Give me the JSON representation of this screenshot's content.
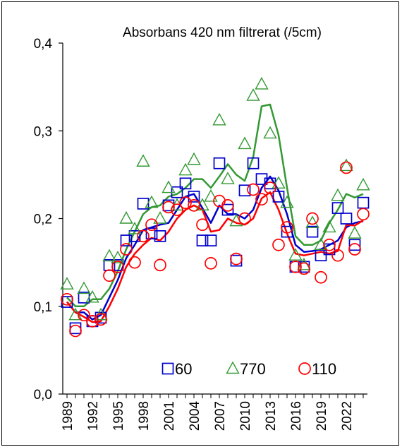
{
  "chart_data": {
    "type": "scatter",
    "title": "Absorbans 420 nm filtrerat (/5cm)",
    "xlabel": "",
    "ylabel": "",
    "ylim": [
      0,
      0.4
    ],
    "xlim": [
      1989,
      2024
    ],
    "y_ticks": [
      "0,0",
      "0,1",
      "0,2",
      "0,3",
      "0,4"
    ],
    "x_ticks": [
      "1989",
      "1992",
      "1995",
      "1998",
      "2001",
      "2004",
      "2007",
      "2010",
      "2013",
      "2016",
      "2019",
      "2022"
    ],
    "legend_position": "bottom-center",
    "series": [
      {
        "name": "60",
        "marker": "square",
        "color": "#0000CC",
        "points": [
          [
            1989,
            0.105
          ],
          [
            1990,
            0.075
          ],
          [
            1991,
            0.11
          ],
          [
            1992,
            0.083
          ],
          [
            1993,
            0.087
          ],
          [
            1994,
            0.147
          ],
          [
            1995,
            0.147
          ],
          [
            1996,
            0.175
          ],
          [
            1997,
            0.18
          ],
          [
            1998,
            0.217
          ],
          [
            1999,
            0.183
          ],
          [
            2000,
            0.18
          ],
          [
            2001,
            0.215
          ],
          [
            2002,
            0.23
          ],
          [
            2003,
            0.24
          ],
          [
            2004,
            0.225
          ],
          [
            2005,
            0.175
          ],
          [
            2006,
            0.175
          ],
          [
            2007,
            0.263
          ],
          [
            2008,
            0.21
          ],
          [
            2009,
            0.152
          ],
          [
            2010,
            0.232
          ],
          [
            2011,
            0.263
          ],
          [
            2012,
            0.245
          ],
          [
            2013,
            0.24
          ],
          [
            2014,
            0.225
          ],
          [
            2015,
            0.185
          ],
          [
            2016,
            0.145
          ],
          [
            2017,
            0.145
          ],
          [
            2018,
            0.185
          ],
          [
            2019,
            0.158
          ],
          [
            2020,
            0.165
          ],
          [
            2021,
            0.212
          ],
          [
            2022,
            0.2
          ],
          [
            2023,
            0.17
          ],
          [
            2024,
            0.218
          ]
        ],
        "trend": [
          [
            1989,
            0.105
          ],
          [
            1990,
            0.093
          ],
          [
            1991,
            0.093
          ],
          [
            1992,
            0.085
          ],
          [
            1993,
            0.09
          ],
          [
            1994,
            0.11
          ],
          [
            1995,
            0.13
          ],
          [
            1996,
            0.155
          ],
          [
            1997,
            0.17
          ],
          [
            1998,
            0.187
          ],
          [
            1999,
            0.19
          ],
          [
            2000,
            0.193
          ],
          [
            2001,
            0.195
          ],
          [
            2002,
            0.21
          ],
          [
            2003,
            0.225
          ],
          [
            2004,
            0.228
          ],
          [
            2005,
            0.212
          ],
          [
            2006,
            0.195
          ],
          [
            2007,
            0.215
          ],
          [
            2008,
            0.205
          ],
          [
            2009,
            0.205
          ],
          [
            2010,
            0.2
          ],
          [
            2011,
            0.21
          ],
          [
            2012,
            0.235
          ],
          [
            2013,
            0.248
          ],
          [
            2014,
            0.232
          ],
          [
            2015,
            0.205
          ],
          [
            2016,
            0.17
          ],
          [
            2017,
            0.162
          ],
          [
            2018,
            0.163
          ],
          [
            2019,
            0.165
          ],
          [
            2020,
            0.17
          ],
          [
            2021,
            0.175
          ],
          [
            2022,
            0.19
          ],
          [
            2023,
            0.195
          ],
          [
            2024,
            0.197
          ]
        ]
      },
      {
        "name": "770",
        "marker": "triangle",
        "color": "#339933",
        "points": [
          [
            1989,
            0.125
          ],
          [
            1990,
            0.09
          ],
          [
            1991,
            0.12
          ],
          [
            1992,
            0.11
          ],
          [
            1993,
            0.09
          ],
          [
            1994,
            0.157
          ],
          [
            1995,
            0.155
          ],
          [
            1996,
            0.2
          ],
          [
            1997,
            0.188
          ],
          [
            1998,
            0.265
          ],
          [
            1999,
            0.218
          ],
          [
            2000,
            0.2
          ],
          [
            2001,
            0.235
          ],
          [
            2002,
            0.215
          ],
          [
            2003,
            0.255
          ],
          [
            2004,
            0.267
          ],
          [
            2005,
            0.215
          ],
          [
            2006,
            0.225
          ],
          [
            2007,
            0.312
          ],
          [
            2008,
            0.245
          ],
          [
            2009,
            0.197
          ],
          [
            2010,
            0.285
          ],
          [
            2011,
            0.34
          ],
          [
            2012,
            0.353
          ],
          [
            2013,
            0.297
          ],
          [
            2014,
            0.24
          ],
          [
            2015,
            0.218
          ],
          [
            2016,
            0.158
          ],
          [
            2017,
            0.147
          ],
          [
            2018,
            0.195
          ],
          [
            2019,
            0.17
          ],
          [
            2020,
            0.19
          ],
          [
            2021,
            0.226
          ],
          [
            2022,
            0.26
          ],
          [
            2023,
            0.183
          ],
          [
            2024,
            0.238
          ]
        ],
        "trend": [
          [
            1989,
            0.11
          ],
          [
            1990,
            0.1
          ],
          [
            1991,
            0.1
          ],
          [
            1992,
            0.108
          ],
          [
            1993,
            0.108
          ],
          [
            1994,
            0.12
          ],
          [
            1995,
            0.14
          ],
          [
            1996,
            0.165
          ],
          [
            1997,
            0.185
          ],
          [
            1998,
            0.205
          ],
          [
            1999,
            0.213
          ],
          [
            2000,
            0.215
          ],
          [
            2001,
            0.225
          ],
          [
            2002,
            0.228
          ],
          [
            2003,
            0.235
          ],
          [
            2004,
            0.245
          ],
          [
            2005,
            0.245
          ],
          [
            2006,
            0.235
          ],
          [
            2007,
            0.248
          ],
          [
            2008,
            0.262
          ],
          [
            2009,
            0.25
          ],
          [
            2010,
            0.243
          ],
          [
            2011,
            0.27
          ],
          [
            2012,
            0.328
          ],
          [
            2013,
            0.33
          ],
          [
            2014,
            0.295
          ],
          [
            2015,
            0.235
          ],
          [
            2016,
            0.18
          ],
          [
            2017,
            0.17
          ],
          [
            2018,
            0.17
          ],
          [
            2019,
            0.175
          ],
          [
            2020,
            0.195
          ],
          [
            2021,
            0.21
          ],
          [
            2022,
            0.228
          ],
          [
            2023,
            0.224
          ],
          [
            2024,
            0.228
          ]
        ]
      },
      {
        "name": "110",
        "marker": "circle",
        "color": "#FF0000",
        "points": [
          [
            1989,
            0.108
          ],
          [
            1990,
            0.072
          ],
          [
            1991,
            0.09
          ],
          [
            1992,
            0.083
          ],
          [
            1993,
            0.085
          ],
          [
            1994,
            0.135
          ],
          [
            1995,
            0.145
          ],
          [
            1996,
            0.165
          ],
          [
            1997,
            0.15
          ],
          [
            1998,
            0.18
          ],
          [
            1999,
            0.193
          ],
          [
            2000,
            0.147
          ],
          [
            2001,
            0.213
          ],
          [
            2002,
            0.21
          ],
          [
            2003,
            0.218
          ],
          [
            2004,
            0.215
          ],
          [
            2005,
            0.193
          ],
          [
            2006,
            0.149
          ],
          [
            2007,
            0.22
          ],
          [
            2008,
            0.215
          ],
          [
            2009,
            0.154
          ],
          [
            2010,
            0.2
          ],
          [
            2011,
            0.233
          ],
          [
            2012,
            0.222
          ],
          [
            2013,
            0.235
          ],
          [
            2014,
            0.17
          ],
          [
            2015,
            0.19
          ],
          [
            2016,
            0.145
          ],
          [
            2017,
            0.143
          ],
          [
            2018,
            0.2
          ],
          [
            2019,
            0.133
          ],
          [
            2020,
            0.17
          ],
          [
            2021,
            0.158
          ],
          [
            2022,
            0.258
          ],
          [
            2023,
            0.165
          ],
          [
            2024,
            0.205
          ]
        ],
        "trend": [
          [
            1989,
            0.105
          ],
          [
            1990,
            0.093
          ],
          [
            1991,
            0.088
          ],
          [
            1992,
            0.082
          ],
          [
            1993,
            0.083
          ],
          [
            1994,
            0.1
          ],
          [
            1995,
            0.12
          ],
          [
            1996,
            0.145
          ],
          [
            1997,
            0.16
          ],
          [
            1998,
            0.17
          ],
          [
            1999,
            0.178
          ],
          [
            2000,
            0.175
          ],
          [
            2001,
            0.185
          ],
          [
            2002,
            0.2
          ],
          [
            2003,
            0.21
          ],
          [
            2004,
            0.215
          ],
          [
            2005,
            0.21
          ],
          [
            2006,
            0.185
          ],
          [
            2007,
            0.187
          ],
          [
            2008,
            0.2
          ],
          [
            2009,
            0.195
          ],
          [
            2010,
            0.193
          ],
          [
            2011,
            0.2
          ],
          [
            2012,
            0.223
          ],
          [
            2013,
            0.23
          ],
          [
            2014,
            0.21
          ],
          [
            2015,
            0.183
          ],
          [
            2016,
            0.16
          ],
          [
            2017,
            0.158
          ],
          [
            2018,
            0.16
          ],
          [
            2019,
            0.162
          ],
          [
            2020,
            0.16
          ],
          [
            2021,
            0.163
          ],
          [
            2022,
            0.193
          ],
          [
            2023,
            0.192
          ],
          [
            2024,
            0.198
          ]
        ]
      }
    ]
  }
}
